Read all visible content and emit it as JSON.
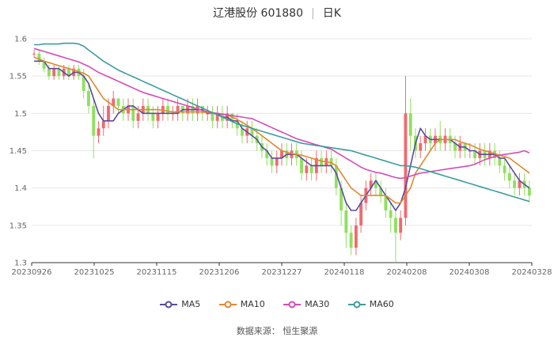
{
  "chart_data": {
    "type": "candlestick",
    "title": "辽港股份 601880",
    "period": "日K",
    "ylim": [
      1.3,
      1.6
    ],
    "yticks": [
      "1.6",
      "1.55",
      "1.5",
      "1.45",
      "1.4",
      "1.35",
      "1.3"
    ],
    "xticks": [
      "20230926",
      "20231025",
      "20231115",
      "20231206",
      "20231227",
      "20240118",
      "20240208",
      "20240308",
      "20240328"
    ],
    "grid": true,
    "legend_position": "bottom",
    "colors": {
      "up": "#f0696f",
      "down": "#8fe05f",
      "MA5": "#5b4aa0",
      "MA10": "#e0882f",
      "MA30": "#d64cb5",
      "MA60": "#3d9c9f",
      "grid": "#e6e6e6"
    },
    "candles": [
      [
        1.58,
        1.58,
        1.585,
        1.575
      ],
      [
        1.58,
        1.57,
        1.585,
        1.565
      ],
      [
        1.57,
        1.56,
        1.575,
        1.555
      ],
      [
        1.56,
        1.55,
        1.565,
        1.545
      ],
      [
        1.55,
        1.56,
        1.565,
        1.545
      ],
      [
        1.56,
        1.55,
        1.565,
        1.545
      ],
      [
        1.55,
        1.56,
        1.565,
        1.545
      ],
      [
        1.56,
        1.55,
        1.565,
        1.545
      ],
      [
        1.55,
        1.56,
        1.565,
        1.545
      ],
      [
        1.56,
        1.55,
        1.565,
        1.545
      ],
      [
        1.55,
        1.53,
        1.56,
        1.52
      ],
      [
        1.53,
        1.51,
        1.54,
        1.5
      ],
      [
        1.51,
        1.47,
        1.52,
        1.44
      ],
      [
        1.47,
        1.48,
        1.49,
        1.46
      ],
      [
        1.48,
        1.49,
        1.51,
        1.47
      ],
      [
        1.49,
        1.51,
        1.52,
        1.48
      ],
      [
        1.51,
        1.52,
        1.53,
        1.5
      ],
      [
        1.52,
        1.51,
        1.52,
        1.5
      ],
      [
        1.51,
        1.5,
        1.52,
        1.49
      ],
      [
        1.5,
        1.51,
        1.52,
        1.49
      ],
      [
        1.51,
        1.49,
        1.52,
        1.48
      ],
      [
        1.49,
        1.5,
        1.51,
        1.48
      ],
      [
        1.5,
        1.51,
        1.52,
        1.49
      ],
      [
        1.51,
        1.5,
        1.52,
        1.49
      ],
      [
        1.5,
        1.49,
        1.51,
        1.48
      ],
      [
        1.49,
        1.5,
        1.51,
        1.48
      ],
      [
        1.5,
        1.51,
        1.52,
        1.49
      ],
      [
        1.51,
        1.5,
        1.52,
        1.49
      ],
      [
        1.5,
        1.5,
        1.51,
        1.49
      ],
      [
        1.5,
        1.51,
        1.52,
        1.49
      ],
      [
        1.51,
        1.5,
        1.51,
        1.49
      ],
      [
        1.5,
        1.51,
        1.52,
        1.49
      ],
      [
        1.51,
        1.5,
        1.52,
        1.49
      ],
      [
        1.5,
        1.51,
        1.52,
        1.49
      ],
      [
        1.51,
        1.5,
        1.51,
        1.49
      ],
      [
        1.5,
        1.5,
        1.51,
        1.49
      ],
      [
        1.5,
        1.49,
        1.51,
        1.48
      ],
      [
        1.49,
        1.5,
        1.51,
        1.48
      ],
      [
        1.5,
        1.49,
        1.51,
        1.48
      ],
      [
        1.49,
        1.5,
        1.51,
        1.48
      ],
      [
        1.5,
        1.49,
        1.5,
        1.48
      ],
      [
        1.49,
        1.48,
        1.5,
        1.47
      ],
      [
        1.48,
        1.47,
        1.49,
        1.46
      ],
      [
        1.47,
        1.48,
        1.49,
        1.46
      ],
      [
        1.48,
        1.47,
        1.49,
        1.46
      ],
      [
        1.47,
        1.46,
        1.48,
        1.45
      ],
      [
        1.46,
        1.45,
        1.47,
        1.44
      ],
      [
        1.45,
        1.44,
        1.46,
        1.43
      ],
      [
        1.44,
        1.43,
        1.45,
        1.42
      ],
      [
        1.43,
        1.44,
        1.45,
        1.42
      ],
      [
        1.44,
        1.45,
        1.46,
        1.43
      ],
      [
        1.45,
        1.44,
        1.46,
        1.43
      ],
      [
        1.44,
        1.45,
        1.46,
        1.43
      ],
      [
        1.45,
        1.44,
        1.46,
        1.43
      ],
      [
        1.44,
        1.42,
        1.45,
        1.41
      ],
      [
        1.42,
        1.43,
        1.44,
        1.41
      ],
      [
        1.43,
        1.42,
        1.44,
        1.41
      ],
      [
        1.42,
        1.44,
        1.45,
        1.41
      ],
      [
        1.44,
        1.43,
        1.45,
        1.42
      ],
      [
        1.43,
        1.44,
        1.45,
        1.42
      ],
      [
        1.44,
        1.43,
        1.45,
        1.42
      ],
      [
        1.43,
        1.4,
        1.44,
        1.39
      ],
      [
        1.4,
        1.37,
        1.41,
        1.35
      ],
      [
        1.37,
        1.34,
        1.38,
        1.32
      ],
      [
        1.34,
        1.32,
        1.35,
        1.31
      ],
      [
        1.32,
        1.35,
        1.36,
        1.31
      ],
      [
        1.35,
        1.38,
        1.39,
        1.34
      ],
      [
        1.38,
        1.4,
        1.41,
        1.37
      ],
      [
        1.4,
        1.41,
        1.42,
        1.39
      ],
      [
        1.41,
        1.4,
        1.42,
        1.39
      ],
      [
        1.4,
        1.39,
        1.41,
        1.38
      ],
      [
        1.39,
        1.37,
        1.4,
        1.36
      ],
      [
        1.37,
        1.36,
        1.38,
        1.34
      ],
      [
        1.36,
        1.34,
        1.37,
        1.3
      ],
      [
        1.34,
        1.36,
        1.37,
        1.33
      ],
      [
        1.36,
        1.5,
        1.55,
        1.35
      ],
      [
        1.5,
        1.47,
        1.52,
        1.45
      ],
      [
        1.47,
        1.45,
        1.48,
        1.44
      ],
      [
        1.45,
        1.46,
        1.47,
        1.44
      ],
      [
        1.46,
        1.47,
        1.48,
        1.45
      ],
      [
        1.47,
        1.46,
        1.48,
        1.45
      ],
      [
        1.46,
        1.47,
        1.48,
        1.45
      ],
      [
        1.47,
        1.46,
        1.49,
        1.45
      ],
      [
        1.46,
        1.47,
        1.48,
        1.45
      ],
      [
        1.47,
        1.46,
        1.48,
        1.45
      ],
      [
        1.46,
        1.45,
        1.47,
        1.44
      ],
      [
        1.45,
        1.46,
        1.47,
        1.44
      ],
      [
        1.46,
        1.45,
        1.46,
        1.44
      ],
      [
        1.45,
        1.45,
        1.46,
        1.44
      ],
      [
        1.45,
        1.44,
        1.46,
        1.43
      ],
      [
        1.44,
        1.45,
        1.46,
        1.43
      ],
      [
        1.45,
        1.44,
        1.46,
        1.43
      ],
      [
        1.44,
        1.45,
        1.46,
        1.43
      ],
      [
        1.45,
        1.44,
        1.46,
        1.43
      ],
      [
        1.44,
        1.43,
        1.45,
        1.42
      ],
      [
        1.43,
        1.42,
        1.44,
        1.41
      ],
      [
        1.42,
        1.41,
        1.43,
        1.4
      ],
      [
        1.41,
        1.4,
        1.42,
        1.39
      ],
      [
        1.4,
        1.41,
        1.42,
        1.39
      ],
      [
        1.41,
        1.4,
        1.42,
        1.39
      ],
      [
        1.4,
        1.39,
        1.41,
        1.38
      ]
    ],
    "series": [
      {
        "name": "MA5",
        "values": [
          1.57,
          1.57,
          1.57,
          1.56,
          1.56,
          1.56,
          1.555,
          1.55,
          1.555,
          1.555,
          1.55,
          1.54,
          1.52,
          1.5,
          1.49,
          1.49,
          1.49,
          1.5,
          1.505,
          1.51,
          1.51,
          1.505,
          1.5,
          1.5,
          1.5,
          1.5,
          1.5,
          1.5,
          1.5,
          1.5,
          1.505,
          1.505,
          1.505,
          1.505,
          1.505,
          1.5,
          1.5,
          1.5,
          1.495,
          1.495,
          1.49,
          1.49,
          1.48,
          1.475,
          1.47,
          1.465,
          1.455,
          1.45,
          1.44,
          1.44,
          1.44,
          1.445,
          1.445,
          1.445,
          1.44,
          1.435,
          1.43,
          1.43,
          1.43,
          1.43,
          1.43,
          1.42,
          1.4,
          1.38,
          1.37,
          1.37,
          1.38,
          1.39,
          1.4,
          1.41,
          1.4,
          1.39,
          1.38,
          1.37,
          1.38,
          1.4,
          1.43,
          1.46,
          1.48,
          1.47,
          1.465,
          1.465,
          1.465,
          1.465,
          1.465,
          1.46,
          1.455,
          1.455,
          1.45,
          1.45,
          1.445,
          1.445,
          1.445,
          1.445,
          1.44,
          1.44,
          1.43,
          1.42,
          1.41,
          1.405,
          1.4
        ]
      },
      {
        "name": "MA10",
        "values": [
          1.575,
          1.573,
          1.57,
          1.568,
          1.566,
          1.564,
          1.562,
          1.56,
          1.558,
          1.556,
          1.554,
          1.55,
          1.54,
          1.53,
          1.52,
          1.515,
          1.51,
          1.505,
          1.505,
          1.505,
          1.505,
          1.505,
          1.505,
          1.505,
          1.505,
          1.505,
          1.504,
          1.503,
          1.502,
          1.502,
          1.502,
          1.502,
          1.502,
          1.502,
          1.502,
          1.501,
          1.5,
          1.5,
          1.499,
          1.498,
          1.495,
          1.492,
          1.488,
          1.484,
          1.48,
          1.475,
          1.47,
          1.465,
          1.46,
          1.455,
          1.45,
          1.448,
          1.446,
          1.445,
          1.444,
          1.442,
          1.44,
          1.438,
          1.436,
          1.435,
          1.434,
          1.43,
          1.42,
          1.41,
          1.4,
          1.395,
          1.39,
          1.39,
          1.39,
          1.39,
          1.39,
          1.39,
          1.385,
          1.38,
          1.38,
          1.39,
          1.4,
          1.42,
          1.43,
          1.44,
          1.45,
          1.46,
          1.465,
          1.465,
          1.465,
          1.465,
          1.462,
          1.46,
          1.458,
          1.455,
          1.452,
          1.45,
          1.448,
          1.446,
          1.444,
          1.442,
          1.44,
          1.435,
          1.43,
          1.425,
          1.42
        ]
      },
      {
        "name": "MA30",
        "values": [
          1.587,
          1.585,
          1.583,
          1.581,
          1.579,
          1.577,
          1.575,
          1.573,
          1.571,
          1.569,
          1.566,
          1.563,
          1.559,
          1.555,
          1.552,
          1.549,
          1.546,
          1.543,
          1.54,
          1.537,
          1.534,
          1.531,
          1.528,
          1.526,
          1.524,
          1.522,
          1.52,
          1.518,
          1.516,
          1.514,
          1.512,
          1.51,
          1.508,
          1.506,
          1.504,
          1.502,
          1.501,
          1.5,
          1.499,
          1.498,
          1.497,
          1.496,
          1.495,
          1.494,
          1.493,
          1.49,
          1.487,
          1.484,
          1.481,
          1.478,
          1.475,
          1.472,
          1.469,
          1.466,
          1.464,
          1.462,
          1.46,
          1.458,
          1.456,
          1.454,
          1.452,
          1.448,
          1.444,
          1.44,
          1.436,
          1.432,
          1.428,
          1.425,
          1.423,
          1.421,
          1.42,
          1.418,
          1.416,
          1.414,
          1.413,
          1.414,
          1.416,
          1.418,
          1.42,
          1.421,
          1.422,
          1.423,
          1.424,
          1.425,
          1.426,
          1.427,
          1.428,
          1.429,
          1.43,
          1.432,
          1.435,
          1.438,
          1.44,
          1.442,
          1.444,
          1.445,
          1.446,
          1.447,
          1.448,
          1.45,
          1.447
        ]
      },
      {
        "name": "MA60",
        "values": [
          1.592,
          1.592,
          1.593,
          1.593,
          1.593,
          1.593,
          1.594,
          1.594,
          1.594,
          1.593,
          1.59,
          1.585,
          1.58,
          1.575,
          1.57,
          1.566,
          1.562,
          1.558,
          1.555,
          1.552,
          1.549,
          1.546,
          1.543,
          1.54,
          1.537,
          1.534,
          1.531,
          1.528,
          1.525,
          1.522,
          1.519,
          1.516,
          1.513,
          1.51,
          1.507,
          1.504,
          1.501,
          1.498,
          1.495,
          1.492,
          1.489,
          1.486,
          1.484,
          1.482,
          1.48,
          1.478,
          1.476,
          1.474,
          1.472,
          1.47,
          1.468,
          1.466,
          1.464,
          1.462,
          1.46,
          1.459,
          1.458,
          1.457,
          1.456,
          1.455,
          1.454,
          1.453,
          1.452,
          1.451,
          1.45,
          1.448,
          1.446,
          1.444,
          1.442,
          1.44,
          1.438,
          1.436,
          1.434,
          1.432,
          1.43,
          1.43,
          1.429,
          1.428,
          1.426,
          1.424,
          1.422,
          1.42,
          1.418,
          1.416,
          1.414,
          1.412,
          1.41,
          1.408,
          1.406,
          1.404,
          1.402,
          1.4,
          1.398,
          1.396,
          1.394,
          1.392,
          1.39,
          1.388,
          1.386,
          1.384,
          1.382
        ]
      }
    ]
  },
  "legend": [
    {
      "label": "MA5",
      "color": "#5b4aa0"
    },
    {
      "label": "MA10",
      "color": "#e0882f"
    },
    {
      "label": "MA30",
      "color": "#d64cb5"
    },
    {
      "label": "MA60",
      "color": "#3d9c9f"
    }
  ],
  "source_text": "数据来源：  恒生聚源"
}
